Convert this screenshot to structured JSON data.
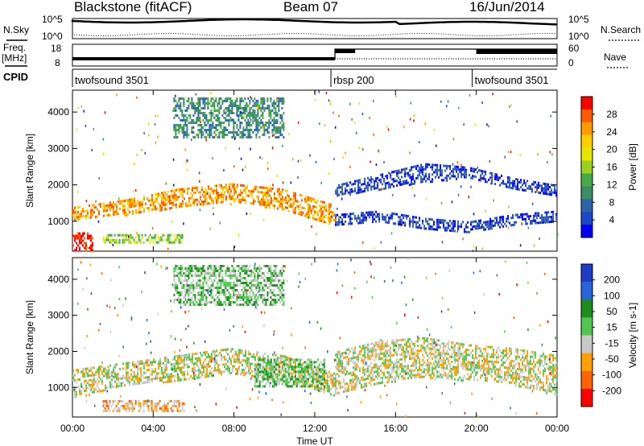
{
  "header": {
    "site": "Blackstone (fitACF)",
    "beam": "Beam 07",
    "date": "16/Jun/2014"
  },
  "status_panels": {
    "nsky_label": "N.Sky",
    "nsearch_label": "N.Search",
    "nsky_ticks": [
      "10^5",
      "10^0"
    ],
    "nsearch_ticks": [
      "10^5",
      "10^0"
    ],
    "freq_label_1": "Freq.",
    "freq_label_2": "[MHz]",
    "freq_ticks": [
      "18",
      "8"
    ],
    "nave_label": "Nave",
    "nave_ticks": [
      "60",
      "0"
    ],
    "cpid_label": "CPID",
    "cpid_segments": [
      {
        "name": "twofsound 3501",
        "start_h": 0,
        "end_h": 12.8
      },
      {
        "name": "rbsp 200",
        "start_h": 12.8,
        "end_h": 19.8
      },
      {
        "name": "twofsound 3501",
        "start_h": 19.8,
        "end_h": 24
      }
    ]
  },
  "chart_data": [
    {
      "type": "heatmap",
      "title": "",
      "xlabel": "Time UT",
      "ylabel": "Slant Range [km]",
      "x_ticks": [
        "00:00",
        "04:00",
        "08:00",
        "12:00",
        "16:00",
        "20:00",
        "00:00"
      ],
      "xlim_hours": [
        0,
        24
      ],
      "y_ticks": [
        1000,
        2000,
        3000,
        4000
      ],
      "ylim": [
        180,
        4600
      ],
      "colorbar": {
        "label": "Power [dB]",
        "ticks": [
          "28",
          "24",
          "20",
          "16",
          "12",
          "8",
          "4"
        ],
        "colors": [
          "#ff0000",
          "#ff5a00",
          "#ff9a00",
          "#ffd000",
          "#e6e600",
          "#9ad21e",
          "#46aa46",
          "#3c8c64",
          "#2d64aa",
          "#1e46c8",
          "#0000ff"
        ]
      },
      "echo_bands": [
        {
          "start_h": 0.0,
          "end_h": 1.0,
          "low_km": 200,
          "high_km": 700,
          "level": 0
        },
        {
          "start_h": 0.0,
          "end_h": 13.0,
          "lows_km": [
            1050,
            1200,
            1400,
            1550,
            1350,
            900
          ],
          "highs_km": [
            1400,
            1600,
            1900,
            2050,
            1900,
            1450
          ],
          "level": 2
        },
        {
          "start_h": 1.5,
          "end_h": 5.5,
          "low_km": 400,
          "high_km": 650,
          "level": 5
        },
        {
          "start_h": 5.0,
          "end_h": 10.5,
          "low_km": 3300,
          "high_km": 4400,
          "level": 7
        },
        {
          "start_h": 13.0,
          "end_h": 24.0,
          "lows_km": [
            1700,
            1900,
            2100,
            2200,
            1900,
            1700
          ],
          "highs_km": [
            2000,
            2300,
            2600,
            2500,
            2200,
            2000
          ],
          "level": 9
        },
        {
          "start_h": 13.0,
          "end_h": 24.0,
          "lows_km": [
            900,
            1000,
            800,
            700,
            900,
            1000
          ],
          "highs_km": [
            1200,
            1300,
            1100,
            1000,
            1200,
            1300
          ],
          "level": 9
        }
      ]
    },
    {
      "type": "heatmap",
      "title": "",
      "xlabel": "Time UT",
      "ylabel": "Slant Range [km]",
      "x_ticks": [
        "00:00",
        "04:00",
        "08:00",
        "12:00",
        "16:00",
        "20:00",
        "00:00"
      ],
      "xlim_hours": [
        0,
        24
      ],
      "y_ticks": [
        1000,
        2000,
        3000,
        4000
      ],
      "ylim": [
        180,
        4600
      ],
      "colorbar": {
        "label": "Velocity [m s-1]",
        "ticks": [
          "200",
          "100",
          "50",
          "15",
          "-15",
          "-50",
          "-100",
          "-200"
        ],
        "colors": [
          "#1e3cc8",
          "#2864dc",
          "#1e8c1e",
          "#50c850",
          "#c8c8c8",
          "#ffa000",
          "#ff6400",
          "#ff0000"
        ]
      },
      "echo_bands": [
        {
          "start_h": 0.0,
          "end_h": 13.0,
          "lows_km": [
            700,
            1100,
            1200,
            1400,
            1200,
            800
          ],
          "highs_km": [
            1500,
            1700,
            1900,
            2100,
            1900,
            1400
          ],
          "level": 4
        },
        {
          "start_h": 13.0,
          "end_h": 24.0,
          "lows_km": [
            800,
            1100,
            1300,
            1200,
            1100,
            800
          ],
          "highs_km": [
            2000,
            2300,
            2400,
            2200,
            2100,
            1900
          ],
          "level": 4
        },
        {
          "start_h": 1.5,
          "end_h": 5.5,
          "low_km": 350,
          "high_km": 650,
          "level": 5
        },
        {
          "start_h": 9.0,
          "end_h": 12.5,
          "low_km": 1000,
          "high_km": 1800,
          "level": 3
        },
        {
          "start_h": 5.0,
          "end_h": 10.5,
          "low_km": 3300,
          "high_km": 4400,
          "level": 3
        }
      ]
    }
  ]
}
